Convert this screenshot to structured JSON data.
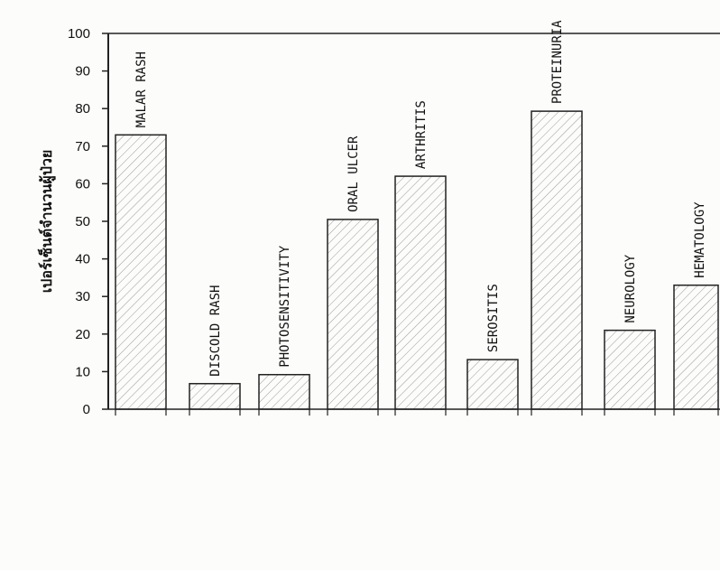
{
  "chart_data": {
    "type": "bar",
    "title": "",
    "xlabel": "",
    "ylabel": "เปอร์เซ็นต์จำนวนผู้ป่วย",
    "ylim": [
      0,
      100
    ],
    "yticks": [
      "0",
      "10",
      "20",
      "30",
      "40",
      "50",
      "60",
      "70",
      "80",
      "90",
      "100"
    ],
    "categories": [
      "MALAR RASH",
      "DISCOLD RASH",
      "PHOTOSENSITIVITY",
      "ORAL ULCER",
      "ARTHRITIS",
      "SEROSITIS",
      "PROTEINURIA",
      "NEUROLOGY",
      "HEMATOLOGY"
    ],
    "values": [
      73,
      6.8,
      9.2,
      50.5,
      62,
      13.2,
      79.3,
      21,
      33
    ],
    "grid": false,
    "bar_fill": "diagonal hatch",
    "colors": {
      "ink": "#222222",
      "hatch": "#9a9a9a",
      "background": "#fcfcfa"
    }
  }
}
